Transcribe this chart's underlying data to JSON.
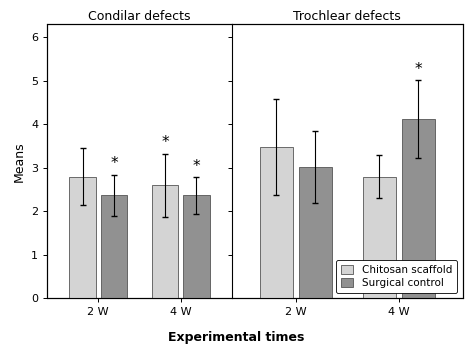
{
  "title_left": "Condilar defects",
  "title_right": "Trochlear defects",
  "xlabel": "Experimental times",
  "ylabel": "Means",
  "ylim": [
    0,
    6.3
  ],
  "yticks": [
    0,
    1,
    2,
    3,
    4,
    5,
    6
  ],
  "bar_values_chitosan": [
    2.8,
    2.6,
    3.48,
    2.8
  ],
  "bar_values_surgical": [
    2.37,
    2.37,
    3.02,
    4.12
  ],
  "err_chitosan": [
    0.65,
    0.72,
    1.1,
    0.5
  ],
  "err_surgical": [
    0.47,
    0.42,
    0.83,
    0.9
  ],
  "color_chitosan": "#d4d4d4",
  "color_surgical": "#919191",
  "legend_labels": [
    "Chitosan scaffold",
    "Surgical control"
  ],
  "bar_width": 0.32,
  "fontsize_title": 9,
  "fontsize_axis_label": 9,
  "fontsize_ticks": 8,
  "fontsize_legend": 7.5,
  "fontsize_asterisk": 11
}
